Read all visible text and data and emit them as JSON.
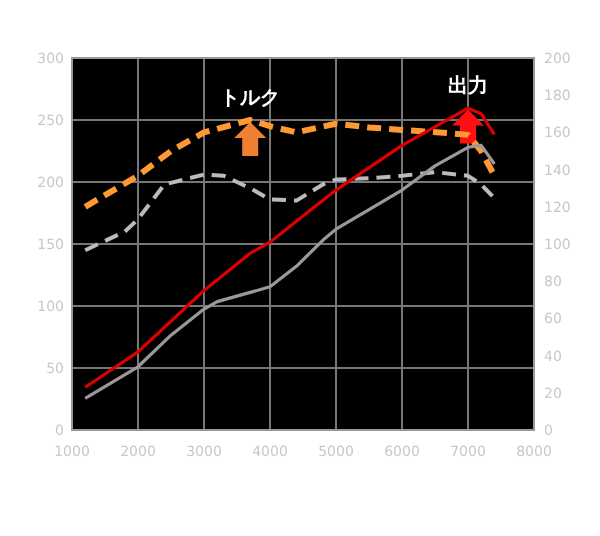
{
  "chart_data": {
    "type": "line",
    "xlim": [
      1000,
      8000
    ],
    "xticks": [
      1000,
      2000,
      3000,
      4000,
      5000,
      6000,
      7000,
      8000
    ],
    "ylim": [
      0,
      300
    ],
    "yticks": [
      0,
      50,
      100,
      150,
      200,
      250,
      300
    ],
    "y2lim": [
      0,
      200
    ],
    "y2ticks": [
      0,
      20,
      40,
      60,
      80,
      100,
      120,
      140,
      160,
      180,
      200
    ],
    "grid": true,
    "series": [
      {
        "color": "#ff9933",
        "line_style": "dashed",
        "x": [
          1200,
          2000,
          2500,
          3000,
          3700,
          4000,
          4400,
          5000,
          5500,
          6000,
          6800,
          7000,
          7200,
          7400
        ],
        "values": [
          180,
          205,
          225,
          240,
          250,
          245,
          240,
          247,
          244,
          242,
          239,
          238,
          225,
          205
        ]
      },
      {
        "color": "#bbbbbb",
        "line_style": "dashed",
        "x": [
          1200,
          1800,
          2000,
          2400,
          3000,
          3300,
          3700,
          4000,
          4400,
          4800,
          5000,
          5500,
          6000,
          6500,
          7000,
          7200,
          7400
        ],
        "values": [
          145,
          160,
          170,
          198,
          206,
          205,
          195,
          186,
          185,
          198,
          202,
          203,
          205,
          208,
          205,
          198,
          187
        ]
      },
      {
        "color": "#dd0000",
        "line_style": "solid",
        "axis": "y2",
        "x": [
          1200,
          2000,
          3000,
          3700,
          4000,
          4500,
          5000,
          6000,
          6500,
          7000,
          7200,
          7400
        ],
        "values": [
          23,
          42,
          75,
          95,
          101,
          115,
          129,
          153,
          163,
          173,
          170,
          159
        ]
      },
      {
        "color": "#999999",
        "line_style": "solid",
        "axis": "y2",
        "x": [
          1200,
          2000,
          2500,
          3000,
          3200,
          4000,
          4400,
          4800,
          5000,
          6000,
          6500,
          7000,
          7200,
          7400
        ],
        "values": [
          17,
          34,
          51,
          65,
          69,
          77,
          88,
          102,
          108,
          129,
          142,
          152,
          153,
          143
        ]
      }
    ],
    "annotations": [
      {
        "text": "トルク",
        "x": 3700,
        "y": 250
      },
      {
        "text": "出力",
        "x": 7000,
        "y": 260
      }
    ]
  }
}
